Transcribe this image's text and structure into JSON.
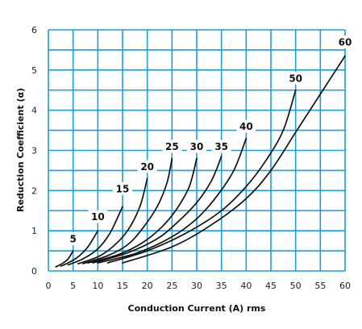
{
  "chart_data": {
    "type": "line",
    "xlabel": "Conduction Current (A) rms",
    "ylabel": "Reduction Coefficient (α)",
    "xlim": [
      0,
      60
    ],
    "ylim": [
      0,
      6
    ],
    "x_ticks": [
      0,
      5,
      10,
      15,
      20,
      25,
      30,
      35,
      40,
      45,
      50,
      55,
      60
    ],
    "y_ticks": [
      0,
      1,
      2,
      3,
      4,
      5,
      6
    ],
    "grid": true,
    "colors": {
      "grid": "#1a9fd8",
      "line": "#111111",
      "background": "#ffffff"
    },
    "series": [
      {
        "name": "5",
        "label_at": [
          5,
          0.8
        ],
        "points": [
          [
            1.5,
            0.1
          ],
          [
            3,
            0.2
          ],
          [
            4,
            0.3
          ],
          [
            5,
            0.5
          ]
        ]
      },
      {
        "name": "10",
        "label_at": [
          10,
          1.35
        ],
        "points": [
          [
            2.5,
            0.12
          ],
          [
            4,
            0.2
          ],
          [
            6,
            0.35
          ],
          [
            8,
            0.6
          ],
          [
            10,
            1.0
          ]
        ]
      },
      {
        "name": "15",
        "label_at": [
          15,
          2.05
        ],
        "points": [
          [
            4,
            0.15
          ],
          [
            7,
            0.3
          ],
          [
            10,
            0.55
          ],
          [
            12.5,
            0.95
          ],
          [
            15,
            1.6
          ]
        ]
      },
      {
        "name": "20",
        "label_at": [
          20,
          2.6
        ],
        "points": [
          [
            6,
            0.18
          ],
          [
            10,
            0.35
          ],
          [
            13,
            0.6
          ],
          [
            16,
            1.0
          ],
          [
            18.5,
            1.6
          ],
          [
            20,
            2.3
          ]
        ]
      },
      {
        "name": "25",
        "label_at": [
          25,
          3.1
        ],
        "points": [
          [
            7,
            0.18
          ],
          [
            12,
            0.38
          ],
          [
            16,
            0.65
          ],
          [
            19,
            1.05
          ],
          [
            22,
            1.6
          ],
          [
            24,
            2.2
          ],
          [
            25,
            2.8
          ]
        ]
      },
      {
        "name": "30",
        "label_at": [
          30,
          3.1
        ],
        "points": [
          [
            8,
            0.2
          ],
          [
            14,
            0.4
          ],
          [
            19,
            0.7
          ],
          [
            23,
            1.1
          ],
          [
            26,
            1.55
          ],
          [
            28.5,
            2.1
          ],
          [
            30,
            2.8
          ]
        ]
      },
      {
        "name": "35",
        "label_at": [
          35,
          3.1
        ],
        "points": [
          [
            9,
            0.2
          ],
          [
            16,
            0.45
          ],
          [
            22,
            0.8
          ],
          [
            26,
            1.2
          ],
          [
            30,
            1.7
          ],
          [
            33,
            2.25
          ],
          [
            35,
            2.85
          ]
        ]
      },
      {
        "name": "40",
        "label_at": [
          40,
          3.6
        ],
        "points": [
          [
            10,
            0.2
          ],
          [
            18,
            0.45
          ],
          [
            25,
            0.85
          ],
          [
            30,
            1.3
          ],
          [
            34,
            1.85
          ],
          [
            37.5,
            2.5
          ],
          [
            40,
            3.3
          ]
        ]
      },
      {
        "name": "50",
        "label_at": [
          50,
          4.8
        ],
        "points": [
          [
            12,
            0.2
          ],
          [
            20,
            0.5
          ],
          [
            28,
            0.95
          ],
          [
            35,
            1.5
          ],
          [
            40,
            2.1
          ],
          [
            44,
            2.75
          ],
          [
            47.5,
            3.5
          ],
          [
            50,
            4.5
          ]
        ]
      },
      {
        "name": "60",
        "label_at": [
          60,
          5.7
        ],
        "points": [
          [
            15,
            0.2
          ],
          [
            25,
            0.6
          ],
          [
            33,
            1.15
          ],
          [
            40,
            1.8
          ],
          [
            45,
            2.5
          ],
          [
            50,
            3.45
          ],
          [
            55,
            4.4
          ],
          [
            60,
            5.35
          ]
        ]
      }
    ]
  }
}
